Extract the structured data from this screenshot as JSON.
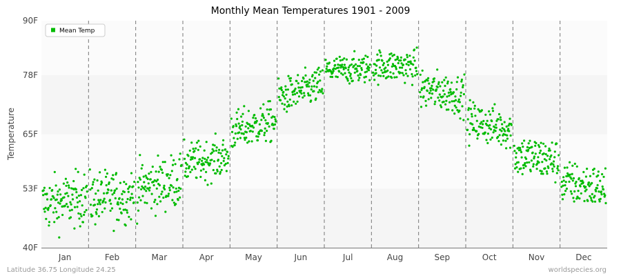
{
  "chart_data": {
    "type": "scatter",
    "title": "Monthly Mean Temperatures 1901 - 2009",
    "ylabel": "Temperature",
    "xlabel": "",
    "ylim": [
      40,
      90
    ],
    "y_ticks": [
      {
        "value": 40,
        "label": "40F"
      },
      {
        "value": 53,
        "label": "53F"
      },
      {
        "value": 65,
        "label": "65F"
      },
      {
        "value": 78,
        "label": "78F"
      },
      {
        "value": 90,
        "label": "90F"
      }
    ],
    "categories": [
      "Jan",
      "Feb",
      "Mar",
      "Apr",
      "May",
      "Jun",
      "Jul",
      "Aug",
      "Sep",
      "Oct",
      "Nov",
      "Dec"
    ],
    "grid": true,
    "legend_position": "top-left",
    "series": [
      {
        "name": "Mean Temp",
        "color": "#00bb00",
        "years": "1901-2009",
        "monthly_start_mean": [
          49.5,
          50.8,
          53.0,
          58.5,
          65.5,
          73.0,
          79.0,
          80.0,
          75.0,
          68.0,
          60.5,
          54.5
        ],
        "monthly_end_mean": [
          51.0,
          51.5,
          55.0,
          60.0,
          68.0,
          76.0,
          79.5,
          80.0,
          73.5,
          66.0,
          59.0,
          53.0
        ],
        "monthly_spread": [
          3.0,
          3.0,
          3.0,
          2.2,
          2.2,
          2.0,
          1.6,
          1.8,
          2.2,
          2.2,
          2.4,
          2.4
        ]
      }
    ]
  },
  "footer": {
    "left": "Latitude 36.75 Longitude 24.25",
    "right": "worldspecies.org"
  }
}
